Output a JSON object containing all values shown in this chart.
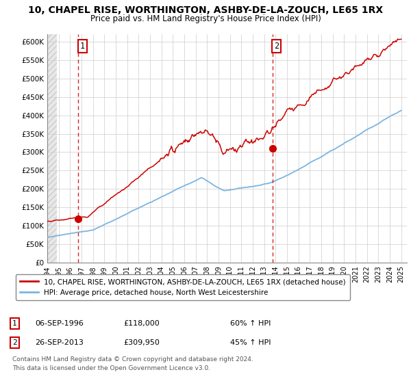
{
  "title": "10, CHAPEL RISE, WORTHINGTON, ASHBY-DE-LA-ZOUCH, LE65 1RX",
  "subtitle": "Price paid vs. HM Land Registry's House Price Index (HPI)",
  "ylim": [
    0,
    620000
  ],
  "yticks": [
    0,
    50000,
    100000,
    150000,
    200000,
    250000,
    300000,
    350000,
    400000,
    450000,
    500000,
    550000,
    600000
  ],
  "ytick_labels": [
    "£0",
    "£50K",
    "£100K",
    "£150K",
    "£200K",
    "£250K",
    "£300K",
    "£350K",
    "£400K",
    "£450K",
    "£500K",
    "£550K",
    "£600K"
  ],
  "sale1_date": 1996.7,
  "sale1_price": 118000,
  "sale1_label": "1",
  "sale2_date": 2013.73,
  "sale2_price": 309950,
  "sale2_label": "2",
  "legend_line1": "10, CHAPEL RISE, WORTHINGTON, ASHBY-DE-LA-ZOUCH, LE65 1RX (detached house)",
  "legend_line2": "HPI: Average price, detached house, North West Leicestershire",
  "footer1": "Contains HM Land Registry data © Crown copyright and database right 2024.",
  "footer2": "This data is licensed under the Open Government Licence v3.0.",
  "table_row1_num": "1",
  "table_row1_date": "06-SEP-1996",
  "table_row1_price": "£118,000",
  "table_row1_hpi": "60% ↑ HPI",
  "table_row2_num": "2",
  "table_row2_date": "26-SEP-2013",
  "table_row2_price": "£309,950",
  "table_row2_hpi": "45% ↑ HPI",
  "hpi_color": "#7cb4e0",
  "price_color": "#cc0000",
  "grid_color": "#cccccc",
  "hatch_color": "#d8d8d8",
  "xlim_start": 1994,
  "xlim_end": 2025.5
}
